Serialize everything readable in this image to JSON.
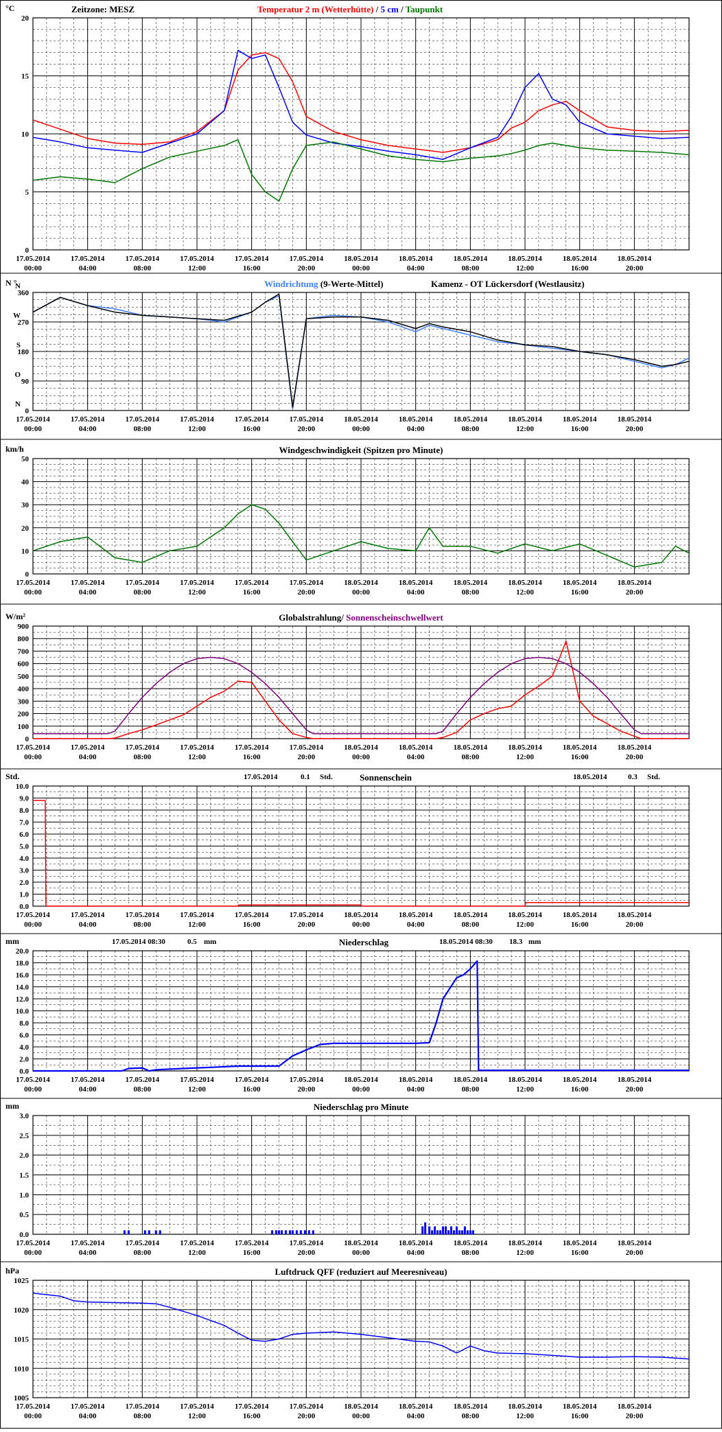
{
  "x_labels": {
    "dates": [
      "17.05.2014",
      "17.05.2014",
      "17.05.2014",
      "17.05.2014",
      "17.05.2014",
      "17.05.2014",
      "18.05.2014",
      "18.05.2014",
      "18.05.2014",
      "18.05.2014",
      "18.05.2014",
      "18.05.2014"
    ],
    "times": [
      "00:00",
      "04:00",
      "08:00",
      "12:00",
      "16:00",
      "20:00",
      "00:00",
      "04:00",
      "08:00",
      "12:00",
      "16:00",
      "20:00"
    ]
  },
  "colors": {
    "red": "#ff0000",
    "blue": "#0000ff",
    "green": "#007700",
    "purple": "#800080",
    "black": "#000000",
    "lightblue": "#4080ff",
    "navy": "#0000cc"
  },
  "chart_data": [
    {
      "id": "temperature",
      "type": "line",
      "unit_label": "°C",
      "title_parts": [
        {
          "text": "Zeitzone: MESZ",
          "color": "#000000"
        },
        {
          "text": "Temperatur 2 m (Wetterhütte)",
          "color": "#ff0000"
        },
        {
          "text": "/",
          "color": "#000000"
        },
        {
          "text": "5 cm",
          "color": "#0000ff"
        },
        {
          "text": "/",
          "color": "#000000"
        },
        {
          "text": "Taupunkt",
          "color": "#007700"
        }
      ],
      "ylim": [
        0,
        20
      ],
      "yticks": [
        0,
        5,
        10,
        15,
        20
      ],
      "ytick_labels": [
        "0",
        "5",
        "10",
        "15",
        "20"
      ],
      "x_hours": [
        0,
        2,
        4,
        6,
        8,
        10,
        12,
        14,
        15,
        16,
        17,
        18,
        19,
        20,
        22,
        24,
        26,
        28,
        30,
        32,
        34,
        35,
        36,
        37,
        38,
        39,
        40,
        42,
        44,
        46,
        48
      ],
      "series": [
        {
          "name": "Temperatur 2 m (Wetterhütte)",
          "color": "#ff0000",
          "values": [
            11.2,
            10.4,
            9.6,
            9.2,
            9.1,
            9.3,
            10.2,
            12.0,
            15.5,
            16.8,
            17.0,
            16.5,
            14.5,
            11.5,
            10.2,
            9.5,
            9.0,
            8.7,
            8.4,
            8.8,
            9.5,
            10.5,
            11.0,
            12.0,
            12.5,
            12.8,
            12.0,
            10.6,
            10.3,
            10.2,
            10.3
          ]
        },
        {
          "name": "5 cm",
          "color": "#0000ff",
          "values": [
            9.7,
            9.3,
            8.8,
            8.6,
            8.4,
            9.2,
            10.0,
            12.0,
            17.2,
            16.5,
            16.8,
            14.0,
            11.0,
            9.9,
            9.2,
            8.9,
            8.5,
            8.2,
            7.8,
            8.8,
            9.7,
            11.5,
            14.0,
            15.2,
            13.0,
            12.5,
            11.0,
            10.0,
            9.8,
            9.6,
            9.7
          ]
        },
        {
          "name": "Taupunkt",
          "color": "#007700",
          "values": [
            6.0,
            6.3,
            6.1,
            5.8,
            7.0,
            8.0,
            8.5,
            9.0,
            9.5,
            6.5,
            5.0,
            4.2,
            7.0,
            9.0,
            9.3,
            8.7,
            8.1,
            7.8,
            7.6,
            7.9,
            8.1,
            8.3,
            8.6,
            9.0,
            9.2,
            9.0,
            8.8,
            8.6,
            8.5,
            8.4,
            8.2
          ]
        }
      ]
    },
    {
      "id": "wind-direction",
      "type": "line",
      "unit_label": "N °",
      "title_parts": [
        {
          "text": "Windrichtung",
          "color": "#4080ff"
        },
        {
          "text": "(9-Werte-Mittel)",
          "color": "#000000"
        },
        {
          "text": "Kamenz - OT Lückersdorf (Westlausitz)",
          "color": "#000000"
        }
      ],
      "ylim": [
        0,
        360
      ],
      "yticks": [
        0,
        90,
        180,
        270,
        360
      ],
      "ytick_labels": [
        "0",
        "90",
        "180",
        "270",
        "360"
      ],
      "compass_labels": [
        "N",
        "O",
        "S",
        "W",
        "N"
      ],
      "x_hours": [
        0,
        2,
        4,
        6,
        8,
        10,
        12,
        14,
        16,
        17,
        18,
        19,
        20,
        22,
        24,
        26,
        28,
        29,
        30,
        32,
        34,
        36,
        38,
        40,
        42,
        44,
        46,
        47,
        48
      ],
      "series": [
        {
          "name": "Windrichtung",
          "color": "#4080ff",
          "values": [
            300,
            345,
            320,
            310,
            290,
            285,
            280,
            270,
            300,
            330,
            350,
            5,
            280,
            290,
            285,
            270,
            240,
            260,
            250,
            230,
            210,
            200,
            190,
            180,
            170,
            150,
            130,
            140,
            160
          ]
        },
        {
          "name": "9-Werte-Mittel",
          "color": "#000000",
          "values": [
            300,
            345,
            320,
            300,
            290,
            285,
            280,
            275,
            300,
            330,
            355,
            10,
            280,
            285,
            285,
            275,
            250,
            265,
            255,
            240,
            215,
            200,
            195,
            180,
            170,
            155,
            135,
            140,
            150
          ]
        }
      ]
    },
    {
      "id": "wind-speed",
      "type": "line",
      "unit_label": "km/h",
      "title_parts": [
        {
          "text": "Windgeschwindigkeit (Spitzen pro Minute)",
          "color": "#000000"
        }
      ],
      "ylim": [
        0,
        50
      ],
      "yticks": [
        0,
        10,
        20,
        30,
        40,
        50
      ],
      "ytick_labels": [
        "0",
        "10",
        "20",
        "30",
        "40",
        "50"
      ],
      "x_hours": [
        0,
        2,
        4,
        6,
        8,
        10,
        12,
        14,
        15,
        16,
        17,
        18,
        19,
        20,
        22,
        24,
        26,
        28,
        29,
        30,
        32,
        34,
        36,
        38,
        40,
        42,
        44,
        46,
        47,
        48
      ],
      "series": [
        {
          "name": "Windgeschwindigkeit",
          "color": "#007700",
          "values": [
            10,
            14,
            16,
            7,
            5,
            10,
            12,
            20,
            26,
            30,
            28,
            22,
            14,
            6,
            10,
            14,
            11,
            10,
            20,
            12,
            12,
            9,
            13,
            10,
            13,
            8,
            3,
            5,
            12,
            9
          ]
        }
      ]
    },
    {
      "id": "global-radiation",
      "type": "line",
      "unit_label": "W/m²",
      "title_parts": [
        {
          "text": "Globalstrahlung/",
          "color": "#000000"
        },
        {
          "text": "Sonnenscheinschwellwert",
          "color": "#800080"
        }
      ],
      "ylim": [
        0,
        900
      ],
      "yticks": [
        0,
        100,
        200,
        300,
        400,
        500,
        600,
        700,
        800,
        900
      ],
      "ytick_labels": [
        "0",
        "100",
        "200",
        "300",
        "400",
        "500",
        "600",
        "700",
        "800",
        "900"
      ],
      "x_hours": [
        0,
        5.5,
        6,
        7,
        8,
        9,
        10,
        11,
        12,
        13,
        14,
        15,
        16,
        17,
        18,
        19,
        20,
        20.5,
        24,
        29.5,
        30,
        31,
        32,
        33,
        34,
        35,
        36,
        37,
        38,
        39,
        40,
        41,
        42,
        43,
        44,
        44.5,
        48
      ],
      "series": [
        {
          "name": "Globalstrahlung",
          "color": "#ff0000",
          "values": [
            0,
            0,
            5,
            40,
            70,
            110,
            150,
            190,
            260,
            330,
            380,
            460,
            450,
            300,
            150,
            40,
            10,
            0,
            0,
            0,
            10,
            50,
            150,
            200,
            240,
            260,
            350,
            420,
            500,
            780,
            300,
            180,
            120,
            60,
            20,
            0,
            0
          ]
        },
        {
          "name": "Sonnenscheinschwellwert",
          "color": "#800080",
          "values": [
            40,
            40,
            60,
            200,
            330,
            440,
            530,
            600,
            640,
            650,
            640,
            600,
            530,
            440,
            330,
            200,
            70,
            40,
            40,
            40,
            60,
            200,
            330,
            440,
            530,
            600,
            640,
            650,
            640,
            600,
            530,
            440,
            330,
            200,
            70,
            40,
            40
          ]
        }
      ]
    },
    {
      "id": "sunshine",
      "type": "line",
      "unit_label": "Std.",
      "title_parts": [
        {
          "text": "Sonnenschein",
          "color": "#000000"
        }
      ],
      "annotations": [
        {
          "date": "17.05.2014",
          "value": "0.1",
          "unit": "Std."
        },
        {
          "date": "18.05.2014",
          "value": "0.3",
          "unit": "Std."
        }
      ],
      "ylim": [
        0,
        10
      ],
      "yticks": [
        0,
        1,
        2,
        3,
        4,
        5,
        6,
        7,
        8,
        9,
        10
      ],
      "ytick_labels": [
        "0.0",
        "1.0",
        "2.0",
        "3.0",
        "4.0",
        "5.0",
        "6.0",
        "7.0",
        "8.0",
        "9.0",
        "10.0"
      ],
      "x_hours": [
        0,
        0.9,
        0.95,
        15,
        15.05,
        24,
        24.05,
        36,
        36.05,
        48
      ],
      "series": [
        {
          "name": "Sonnenschein",
          "color": "#ff0000",
          "values": [
            8.8,
            8.8,
            0,
            0,
            0.1,
            0.1,
            0,
            0,
            0.3,
            0.3
          ]
        }
      ]
    },
    {
      "id": "precipitation",
      "type": "line",
      "unit_label": "mm",
      "title_parts": [
        {
          "text": "Niederschlag",
          "color": "#000000"
        }
      ],
      "annotations": [
        {
          "date": "17.05.2014 08:30",
          "value": "0.5",
          "unit": "mm"
        },
        {
          "date": "18.05.2014 08:30",
          "value": "18.3",
          "unit": "mm"
        }
      ],
      "ylim": [
        0,
        20
      ],
      "yticks": [
        0,
        2,
        4,
        6,
        8,
        10,
        12,
        14,
        16,
        18,
        20
      ],
      "ytick_labels": [
        "0.0",
        "2.0",
        "4.0",
        "6.0",
        "8.0",
        "10.0",
        "12.0",
        "14.0",
        "16.0",
        "18.0",
        "20.0"
      ],
      "x_hours": [
        0,
        6.5,
        7,
        8,
        8.5,
        9,
        10,
        11,
        12,
        13,
        14,
        15,
        16,
        17,
        18,
        19,
        20,
        21,
        22,
        24,
        26,
        27,
        28,
        29,
        29.5,
        30,
        31,
        31.5,
        32,
        32.5,
        32.6,
        48
      ],
      "series": [
        {
          "name": "Niederschlag",
          "color": "#0000ff",
          "values": [
            0,
            0,
            0.4,
            0.5,
            0,
            0.2,
            0.3,
            0.4,
            0.5,
            0.6,
            0.7,
            0.8,
            0.8,
            0.8,
            0.8,
            2.5,
            3.5,
            4.4,
            4.6,
            4.6,
            4.6,
            4.6,
            4.6,
            4.7,
            8,
            12,
            15.5,
            16,
            17,
            18.3,
            0.1,
            0.1
          ]
        }
      ]
    },
    {
      "id": "precipitation-per-minute",
      "type": "bar",
      "unit_label": "mm",
      "title_parts": [
        {
          "text": "Niederschlag pro Minute",
          "color": "#000000"
        }
      ],
      "ylim": [
        0,
        3
      ],
      "yticks": [
        0,
        0.5,
        1,
        1.5,
        2,
        2.5,
        3
      ],
      "ytick_labels": [
        "0.0",
        "0.5",
        "1.0",
        "1.5",
        "2.0",
        "2.5",
        "3.0"
      ],
      "x_hours": [
        6.7,
        7.0,
        8.2,
        8.5,
        9.0,
        9.3,
        17.5,
        17.8,
        18.0,
        18.2,
        18.5,
        18.8,
        19.0,
        19.3,
        19.6,
        19.9,
        20.2,
        20.5,
        28.5,
        28.7,
        29.0,
        29.2,
        29.4,
        29.6,
        29.8,
        30.0,
        30.2,
        30.4,
        30.6,
        30.8,
        31.0,
        31.2,
        31.4,
        31.6,
        31.8,
        32.0,
        32.2
      ],
      "series": [
        {
          "name": "Niederschlag pro Minute",
          "color": "#0000ff",
          "values": [
            0.1,
            0.1,
            0.1,
            0.1,
            0.1,
            0.1,
            0.1,
            0.1,
            0.1,
            0.1,
            0.1,
            0.1,
            0.1,
            0.1,
            0.1,
            0.1,
            0.1,
            0.1,
            0.2,
            0.3,
            0.2,
            0.1,
            0.2,
            0.1,
            0.1,
            0.2,
            0.2,
            0.1,
            0.2,
            0.1,
            0.2,
            0.1,
            0.1,
            0.2,
            0.1,
            0.1,
            0.1
          ]
        }
      ]
    },
    {
      "id": "pressure",
      "type": "line",
      "unit_label": "hPa",
      "title_parts": [
        {
          "text": "Luftdruck QFF (reduziert auf Meeresniveau)",
          "color": "#000000"
        }
      ],
      "ylim": [
        1005,
        1025
      ],
      "yticks": [
        1005,
        1010,
        1015,
        1020,
        1025
      ],
      "ytick_labels": [
        "1005",
        "1010",
        "1015",
        "1020",
        "1025"
      ],
      "x_hours": [
        0,
        2,
        3,
        4,
        6,
        8,
        9,
        10,
        12,
        14,
        15,
        16,
        17,
        18,
        19,
        20,
        22,
        24,
        26,
        28,
        29,
        30,
        31,
        32,
        33,
        34,
        36,
        38,
        40,
        42,
        44,
        46,
        48
      ],
      "series": [
        {
          "name": "Luftdruck QFF",
          "color": "#0000ff",
          "values": [
            1022.8,
            1022.3,
            1021.5,
            1021.3,
            1021.2,
            1021.1,
            1021.0,
            1020.4,
            1019.0,
            1017.3,
            1016.0,
            1014.8,
            1014.6,
            1015.0,
            1015.8,
            1016.0,
            1016.2,
            1015.8,
            1015.2,
            1014.6,
            1014.5,
            1013.8,
            1012.6,
            1013.8,
            1013.0,
            1012.6,
            1012.5,
            1012.2,
            1011.9,
            1011.9,
            1012.0,
            1011.9,
            1011.6
          ]
        }
      ]
    }
  ]
}
